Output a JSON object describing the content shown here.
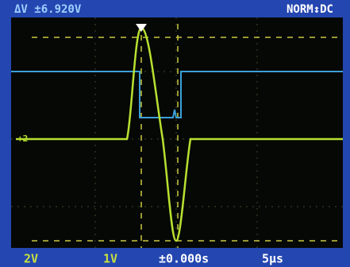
{
  "header": {
    "measurement": "ΔV ±6.920V",
    "trigger": "NORM↕DC"
  },
  "footer": {
    "ch1_scale": "2V",
    "ch2_scale": "1V",
    "delay": "±0.000s",
    "timebase": "5µs"
  },
  "marker": "+2"
}
